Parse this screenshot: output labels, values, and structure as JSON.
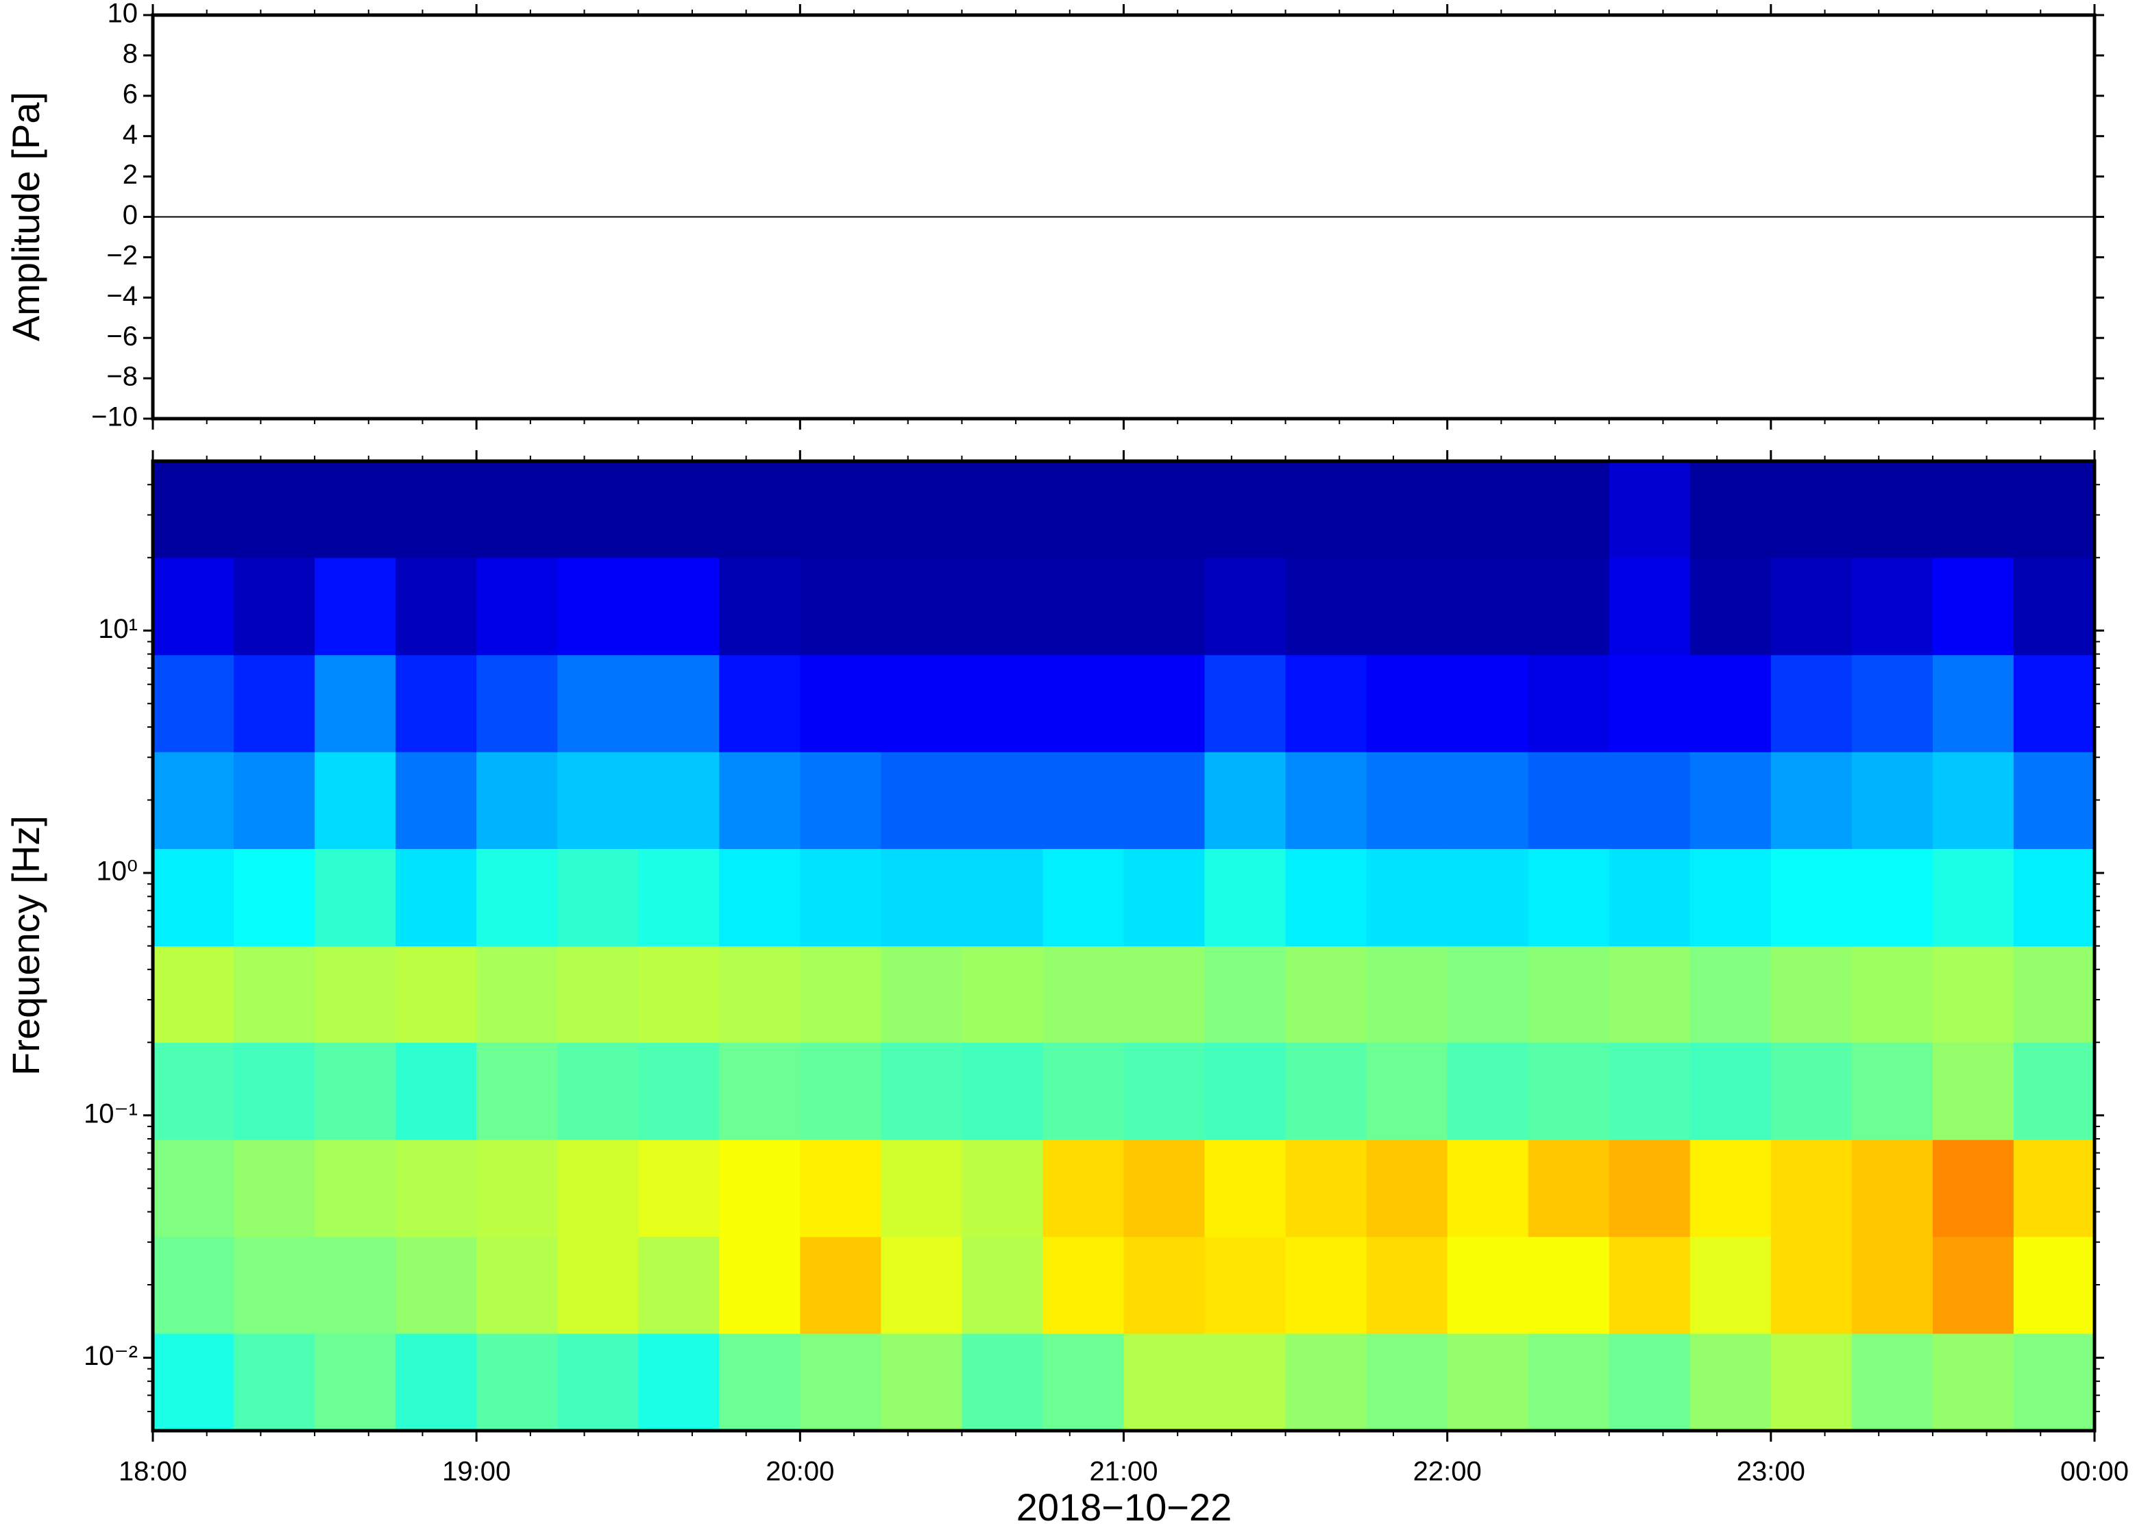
{
  "chart_data": [
    {
      "type": "line",
      "ylabel": "Amplitude [Pa]",
      "x": [
        18,
        18.25,
        18.5,
        18.75,
        19,
        19.25,
        19.5,
        19.75,
        20,
        20.25,
        20.5,
        20.75,
        21,
        21.25,
        21.5,
        21.75,
        22,
        22.25,
        22.5,
        22.75,
        23,
        23.25,
        23.5,
        23.75,
        24
      ],
      "values": [
        0,
        0,
        0,
        0,
        0,
        0,
        0,
        0,
        0,
        0,
        0,
        0,
        0,
        0,
        0,
        0,
        0,
        0,
        0,
        0,
        0,
        0,
        0,
        0,
        0
      ],
      "color": "#000000",
      "xlim": [
        18,
        24
      ],
      "ylim": [
        -10,
        10
      ],
      "yticks": [
        {
          "value": -10,
          "label": "−10"
        },
        {
          "value": -8,
          "label": "−8"
        },
        {
          "value": -6,
          "label": "−6"
        },
        {
          "value": -4,
          "label": "−4"
        },
        {
          "value": -2,
          "label": "−2"
        },
        0,
        2,
        4,
        6,
        8,
        10
      ]
    },
    {
      "type": "heatmap",
      "ylabel": "Frequency [Hz]",
      "xlabel": "2018−10−22",
      "colormap": "jet",
      "zlim": [
        0,
        1
      ],
      "log_y": true,
      "xlim": [
        18,
        24
      ],
      "ylim": [
        0.005,
        50
      ],
      "xticks": [
        {
          "value": 18,
          "label": "18:00"
        },
        {
          "value": 19,
          "label": "19:00"
        },
        {
          "value": 20,
          "label": "20:00"
        },
        {
          "value": 21,
          "label": "21:00"
        },
        {
          "value": 22,
          "label": "22:00"
        },
        {
          "value": 23,
          "label": "23:00"
        },
        {
          "value": 24,
          "label": "00:00"
        }
      ],
      "yticks": [
        {
          "value": 0.01,
          "label": "10⁻²"
        },
        {
          "value": 0.1,
          "label": "10⁻¹"
        },
        {
          "value": 1,
          "label": "10⁰"
        },
        {
          "value": 10,
          "label": "10¹"
        }
      ],
      "x_bins": [
        18,
        18.25,
        18.5,
        18.75,
        19,
        19.25,
        19.5,
        19.75,
        20,
        20.25,
        20.5,
        20.75,
        21,
        21.25,
        21.5,
        21.75,
        22,
        22.25,
        22.5,
        22.75,
        23,
        23.25,
        23.5,
        23.75,
        24
      ],
      "y_bins": [
        0.005,
        0.0126,
        0.0316,
        0.0794,
        0.2,
        0.5,
        1.26,
        3.16,
        7.94,
        20,
        50
      ],
      "z": [
        [
          0.4,
          0.45,
          0.48,
          0.42,
          0.46,
          0.44,
          0.4,
          0.48,
          0.5,
          0.52,
          0.46,
          0.48,
          0.55,
          0.55,
          0.52,
          0.5,
          0.52,
          0.5,
          0.48,
          0.52,
          0.55,
          0.5,
          0.52,
          0.5
        ],
        [
          0.48,
          0.5,
          0.5,
          0.52,
          0.55,
          0.58,
          0.55,
          0.62,
          0.68,
          0.6,
          0.55,
          0.64,
          0.66,
          0.65,
          0.64,
          0.66,
          0.62,
          0.62,
          0.66,
          0.6,
          0.66,
          0.68,
          0.72,
          0.62
        ],
        [
          0.5,
          0.52,
          0.54,
          0.55,
          0.56,
          0.58,
          0.6,
          0.62,
          0.64,
          0.58,
          0.56,
          0.66,
          0.68,
          0.64,
          0.66,
          0.68,
          0.64,
          0.68,
          0.7,
          0.64,
          0.66,
          0.68,
          0.74,
          0.66
        ],
        [
          0.45,
          0.44,
          0.46,
          0.42,
          0.48,
          0.46,
          0.45,
          0.48,
          0.47,
          0.45,
          0.44,
          0.46,
          0.45,
          0.44,
          0.46,
          0.48,
          0.45,
          0.46,
          0.45,
          0.44,
          0.46,
          0.48,
          0.52,
          0.46
        ],
        [
          0.56,
          0.54,
          0.55,
          0.56,
          0.54,
          0.55,
          0.56,
          0.55,
          0.54,
          0.52,
          0.53,
          0.52,
          0.52,
          0.5,
          0.52,
          0.51,
          0.5,
          0.51,
          0.52,
          0.5,
          0.52,
          0.53,
          0.54,
          0.52
        ],
        [
          0.36,
          0.38,
          0.42,
          0.35,
          0.4,
          0.42,
          0.4,
          0.36,
          0.35,
          0.34,
          0.34,
          0.36,
          0.35,
          0.4,
          0.36,
          0.35,
          0.35,
          0.36,
          0.35,
          0.36,
          0.38,
          0.38,
          0.4,
          0.36
        ],
        [
          0.28,
          0.26,
          0.34,
          0.24,
          0.3,
          0.32,
          0.32,
          0.26,
          0.24,
          0.22,
          0.22,
          0.22,
          0.22,
          0.3,
          0.26,
          0.24,
          0.24,
          0.22,
          0.22,
          0.24,
          0.28,
          0.3,
          0.32,
          0.24
        ],
        [
          0.2,
          0.16,
          0.26,
          0.16,
          0.2,
          0.24,
          0.24,
          0.14,
          0.12,
          0.12,
          0.12,
          0.12,
          0.12,
          0.18,
          0.14,
          0.12,
          0.12,
          0.1,
          0.12,
          0.12,
          0.18,
          0.2,
          0.24,
          0.14
        ],
        [
          0.1,
          0.06,
          0.14,
          0.06,
          0.1,
          0.12,
          0.12,
          0.05,
          0.04,
          0.04,
          0.04,
          0.04,
          0.04,
          0.06,
          0.04,
          0.04,
          0.04,
          0.04,
          0.1,
          0.04,
          0.06,
          0.08,
          0.12,
          0.05
        ],
        [
          0.03,
          0.03,
          0.03,
          0.03,
          0.03,
          0.03,
          0.03,
          0.03,
          0.03,
          0.03,
          0.03,
          0.03,
          0.03,
          0.03,
          0.03,
          0.03,
          0.03,
          0.03,
          0.08,
          0.03,
          0.03,
          0.03,
          0.03,
          0.03
        ]
      ]
    }
  ]
}
